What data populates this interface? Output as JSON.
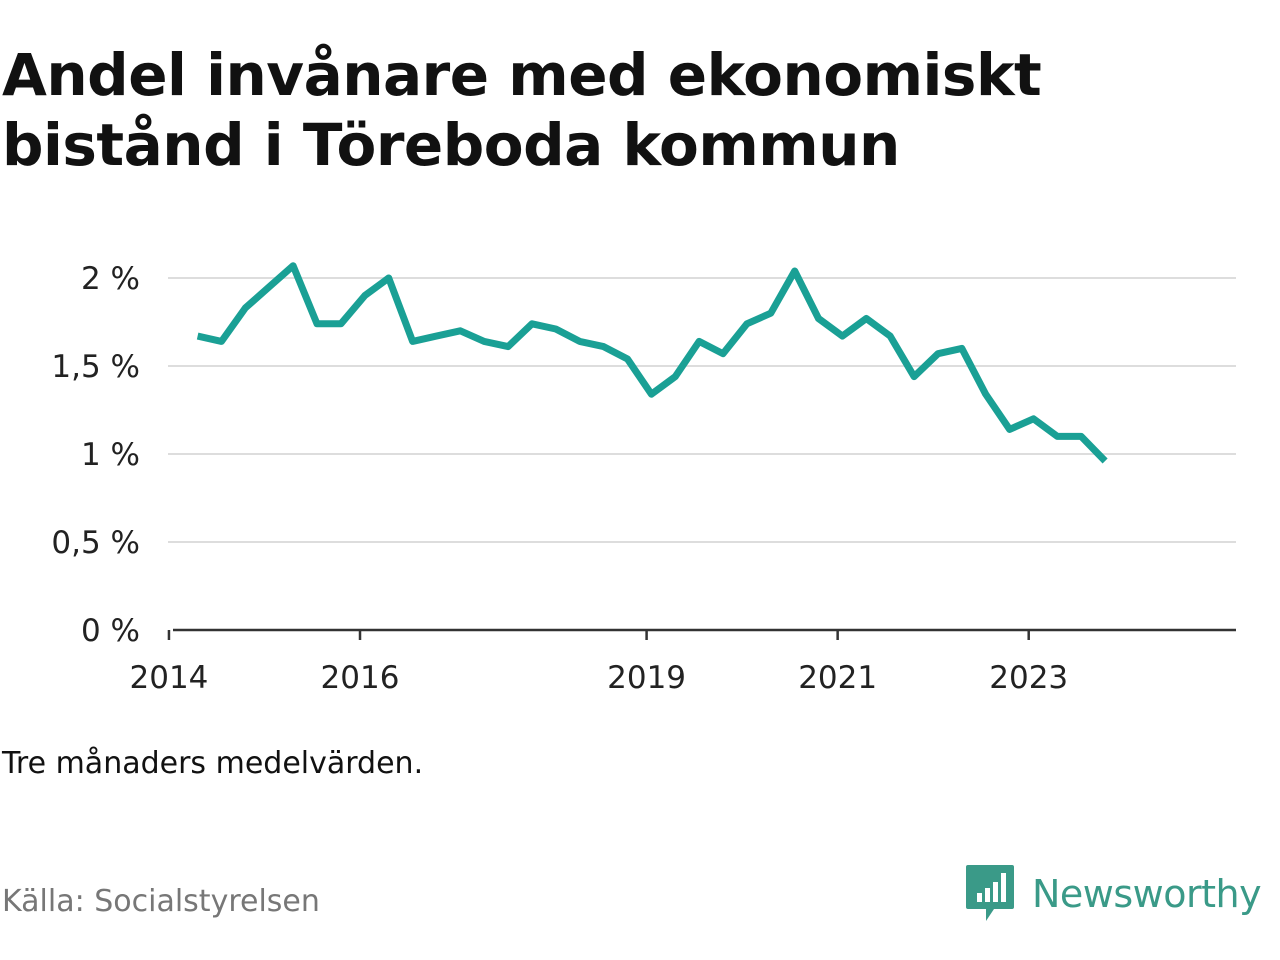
{
  "title_lines": [
    "Andel invånare med ekonomiskt",
    "bistånd i Töreboda kommun"
  ],
  "note": "Tre månaders medelvärden.",
  "source": "Källa: Socialstyrelsen",
  "brand": {
    "name": "Newsworthy",
    "color": "#3a9a88"
  },
  "chart_data": {
    "type": "line",
    "title": "Andel invånare med ekonomiskt bistånd i Töreboda kommun",
    "xlabel": "",
    "ylabel": "",
    "line_color": "#1aa095",
    "grid": true,
    "ylim": [
      0,
      2.0
    ],
    "yticks": [
      {
        "value": 0,
        "label": "0 %"
      },
      {
        "value": 0.5,
        "label": "0,5 %"
      },
      {
        "value": 1.0,
        "label": "1 %"
      },
      {
        "value": 1.5,
        "label": "1,5 %"
      },
      {
        "value": 2.0,
        "label": "2 %"
      }
    ],
    "xlim": [
      2013.99,
      2025.17
    ],
    "xticks": [
      {
        "value": 2014,
        "label": "2014"
      },
      {
        "value": 2016,
        "label": "2016"
      },
      {
        "value": 2019,
        "label": "2019"
      },
      {
        "value": 2021,
        "label": "2021"
      },
      {
        "value": 2023,
        "label": "2023"
      }
    ],
    "series": [
      {
        "x": [
          2014.3,
          2014.55,
          2014.8,
          2015.05,
          2015.3,
          2015.55,
          2015.8,
          2016.05,
          2016.3,
          2016.55,
          2016.8,
          2017.05,
          2017.3,
          2017.55,
          2017.8,
          2018.05,
          2018.3,
          2018.55,
          2018.8,
          2019.05,
          2019.3,
          2019.55,
          2019.8,
          2020.05,
          2020.3,
          2020.55,
          2020.8,
          2021.05,
          2021.3,
          2021.55,
          2021.8,
          2022.05,
          2022.3,
          2022.55,
          2022.8,
          2023.05,
          2023.3,
          2023.55,
          2023.8
        ],
        "values": [
          1.67,
          1.64,
          1.83,
          1.95,
          2.07,
          1.74,
          1.74,
          1.9,
          2.0,
          1.64,
          1.67,
          1.7,
          1.64,
          1.61,
          1.74,
          1.71,
          1.64,
          1.61,
          1.54,
          1.34,
          1.44,
          1.64,
          1.57,
          1.74,
          1.8,
          2.04,
          1.77,
          1.67,
          1.77,
          1.67,
          1.44,
          1.57,
          1.6,
          1.34,
          1.14,
          1.2,
          1.1,
          1.1,
          0.96
        ]
      }
    ]
  }
}
